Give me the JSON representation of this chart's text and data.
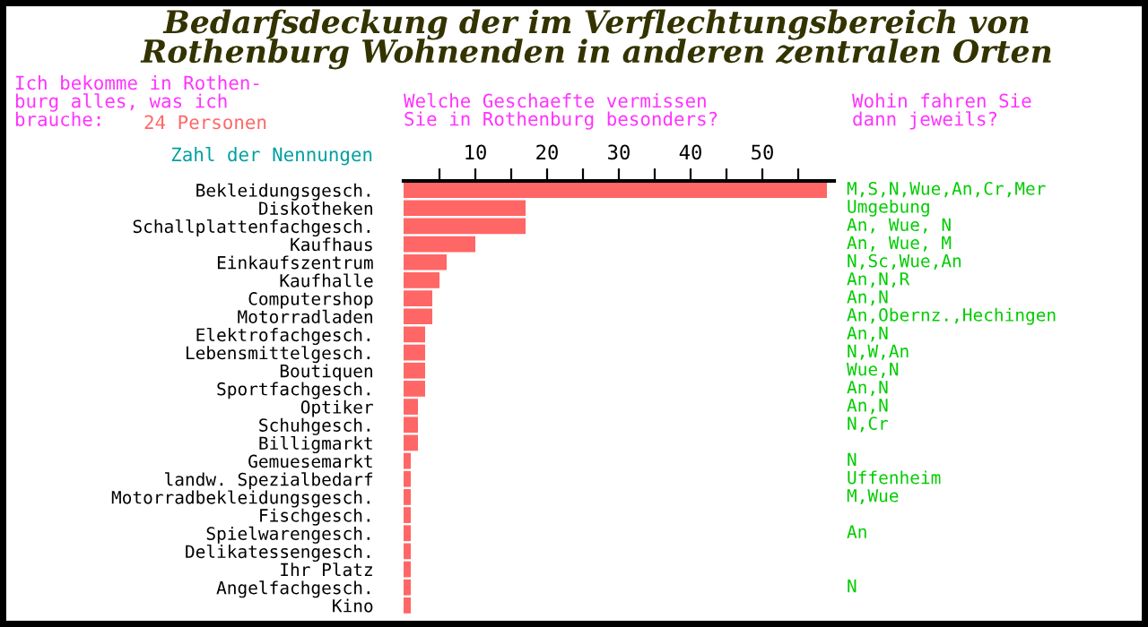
{
  "chart_data": {
    "type": "bar",
    "orientation": "horizontal",
    "title": "Bedarfsdeckung der im Verflechtungsbereich von\nRothenburg Wohnenden in anderen zentralen Orten",
    "subtitle": "Welche Geschaefte vermissen\nSie in Rothenburg besonders?",
    "xlabel": "Zahl der Nennungen",
    "categories": [
      "Bekleidungsgesch.",
      "Diskotheken",
      "Schallplattenfachgesch.",
      "Kaufhaus",
      "Einkaufszentrum",
      "Kaufhalle",
      "Computershop",
      "Motorradladen",
      "Elektrofachgesch.",
      "Lebensmittelgesch.",
      "Boutiquen",
      "Sportfachgesch.",
      "Optiker",
      "Schuhgesch.",
      "Billigmarkt",
      "Gemuesemarkt",
      "landw. Spezialbedarf",
      "Motorradbekleidungsgesch.",
      "Fischgesch.",
      "Spielwarengesch.",
      "Delikatessengesch.",
      "Ihr Platz",
      "Angelfachgesch.",
      "Kino"
    ],
    "values": [
      59,
      17,
      17,
      10,
      6,
      5,
      4,
      4,
      3,
      3,
      3,
      3,
      2,
      2,
      2,
      1,
      1,
      1,
      1,
      1,
      1,
      1,
      1,
      1
    ],
    "color": "#ff6666",
    "xlim": [
      0,
      60
    ],
    "xticks": [
      {
        "value": 5,
        "label": null
      },
      10,
      {
        "value": 15,
        "label": null
      },
      20,
      {
        "value": 25,
        "label": null
      },
      30,
      {
        "value": 35,
        "label": null
      },
      40,
      {
        "value": 45,
        "label": null
      },
      50,
      {
        "value": 55,
        "label": null
      }
    ],
    "grid": false,
    "annotations": [
      "Ich bekomme in Rothen-\nburg alles, was ich\nbrauche:",
      "24 Personen",
      "Wohin fahren Sie\ndann jeweils?",
      "M,S,N,Wue,An,Cr,Mer",
      "Umgebung",
      "An, Wue, N",
      "An, Wue, M",
      "N,Sc,Wue,An",
      "An,N,R",
      "An,N",
      "An,Obernz.,Hechingen",
      "An,N",
      "N,W,An",
      "Wue,N",
      "An,N",
      "An,N",
      "N,Cr",
      "N",
      "Uffenheim",
      "M,Wue",
      "An",
      "N"
    ]
  }
}
